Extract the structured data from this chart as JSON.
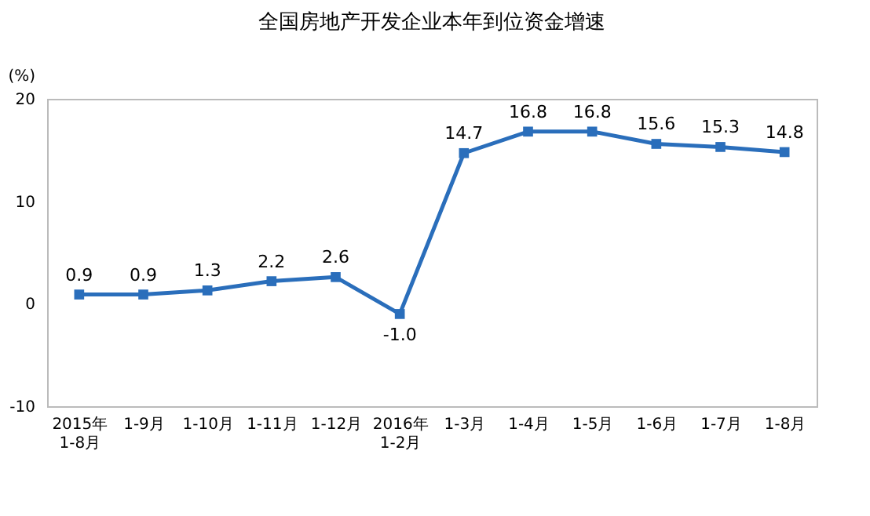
{
  "chart_data": {
    "type": "line",
    "title": "全国房地产开发企业本年到位资金增速",
    "ylabel": "(%)",
    "categories": [
      "2015年\n1-8月",
      "1-9月",
      "1-10月",
      "1-11月",
      "1-12月",
      "2016年\n1-2月",
      "1-3月",
      "1-4月",
      "1-5月",
      "1-6月",
      "1-7月",
      "1-8月"
    ],
    "series": [
      {
        "color": "#2a6ebb",
        "values": [
          0.9,
          0.9,
          1.3,
          2.2,
          2.6,
          -1.0,
          14.7,
          16.8,
          16.8,
          15.6,
          15.3,
          14.8
        ],
        "value_labels": [
          "0.9",
          "0.9",
          "1.3",
          "2.2",
          "2.6",
          "-1.0",
          "14.7",
          "16.8",
          "16.8",
          "15.6",
          "15.3",
          "14.8"
        ]
      }
    ],
    "ylim": [
      -10,
      20
    ],
    "yticks": [
      -10,
      0,
      10,
      20
    ],
    "grid": false,
    "legend": false,
    "marker": "square",
    "line_style": "solid"
  }
}
